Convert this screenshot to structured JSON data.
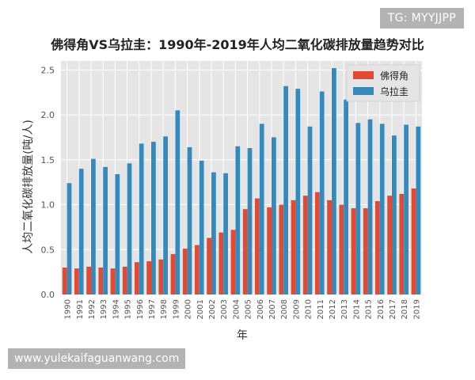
{
  "watermark": {
    "top_right": "TG: MYYJJPP",
    "bottom_left": "www.yulekaifaguanwang.com"
  },
  "colors": {
    "series_a": "#e24a33",
    "series_b": "#348abd",
    "plot_bg": "#e5e5e5",
    "grid": "#ffffff"
  },
  "chart_data": {
    "type": "bar",
    "title": "佛得角VS乌拉圭：1990年-2019年人均二氧化碳排放量趋势对比",
    "xlabel": "年",
    "ylabel": "人均二氧化碳排放量(吨/人)",
    "ylim": [
      0,
      2.6
    ],
    "yticks": [
      "0.0",
      "0.5",
      "1.0",
      "1.5",
      "2.0",
      "2.5"
    ],
    "grid": true,
    "legend": "top-right",
    "categories": [
      "1990",
      "1991",
      "1992",
      "1993",
      "1994",
      "1995",
      "1996",
      "1997",
      "1998",
      "1999",
      "2000",
      "2001",
      "2002",
      "2003",
      "2004",
      "2005",
      "2006",
      "2007",
      "2008",
      "2009",
      "2010",
      "2011",
      "2012",
      "2013",
      "2014",
      "2015",
      "2016",
      "2017",
      "2018",
      "2019"
    ],
    "series": [
      {
        "name": "佛得角",
        "values": [
          0.3,
          0.29,
          0.31,
          0.3,
          0.29,
          0.31,
          0.36,
          0.37,
          0.39,
          0.45,
          0.51,
          0.55,
          0.63,
          0.69,
          0.72,
          0.95,
          1.07,
          0.97,
          1.0,
          1.05,
          1.1,
          1.14,
          1.05,
          1.0,
          0.96,
          0.96,
          1.04,
          1.1,
          1.12,
          1.18
        ]
      },
      {
        "name": "乌拉圭",
        "values": [
          1.24,
          1.4,
          1.51,
          1.42,
          1.34,
          1.46,
          1.68,
          1.7,
          1.76,
          2.05,
          1.64,
          1.49,
          1.36,
          1.35,
          1.65,
          1.63,
          1.9,
          1.75,
          2.32,
          2.29,
          1.87,
          2.26,
          2.52,
          2.17,
          1.91,
          1.95,
          1.9,
          1.77,
          1.89,
          1.87
        ]
      }
    ]
  }
}
